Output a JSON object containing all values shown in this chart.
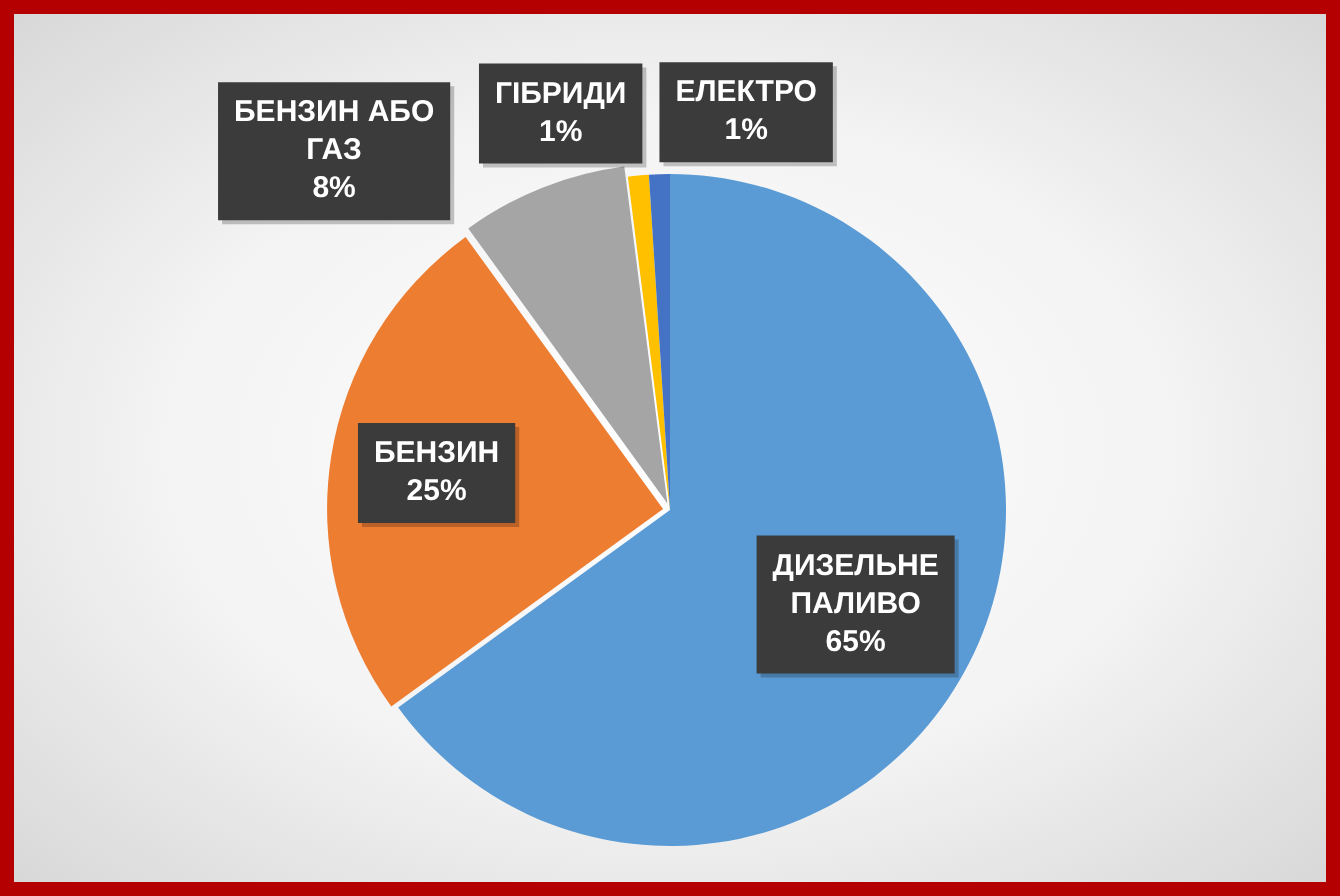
{
  "chart_data": {
    "type": "pie",
    "categories": [
      "ДИЗЕЛЬНЕ ПАЛИВО",
      "БЕНЗИН",
      "БЕНЗИН АБО ГАЗ",
      "ГІБРИДИ",
      "ЕЛЕКТРО"
    ],
    "values": [
      65,
      25,
      8,
      1,
      1
    ],
    "value_labels": [
      "65%",
      "25%",
      "8%",
      "1%",
      "1%"
    ],
    "colors": [
      "#5b9bd5",
      "#ed7d31",
      "#a5a5a5",
      "#ffc000",
      "#4472c4"
    ]
  }
}
